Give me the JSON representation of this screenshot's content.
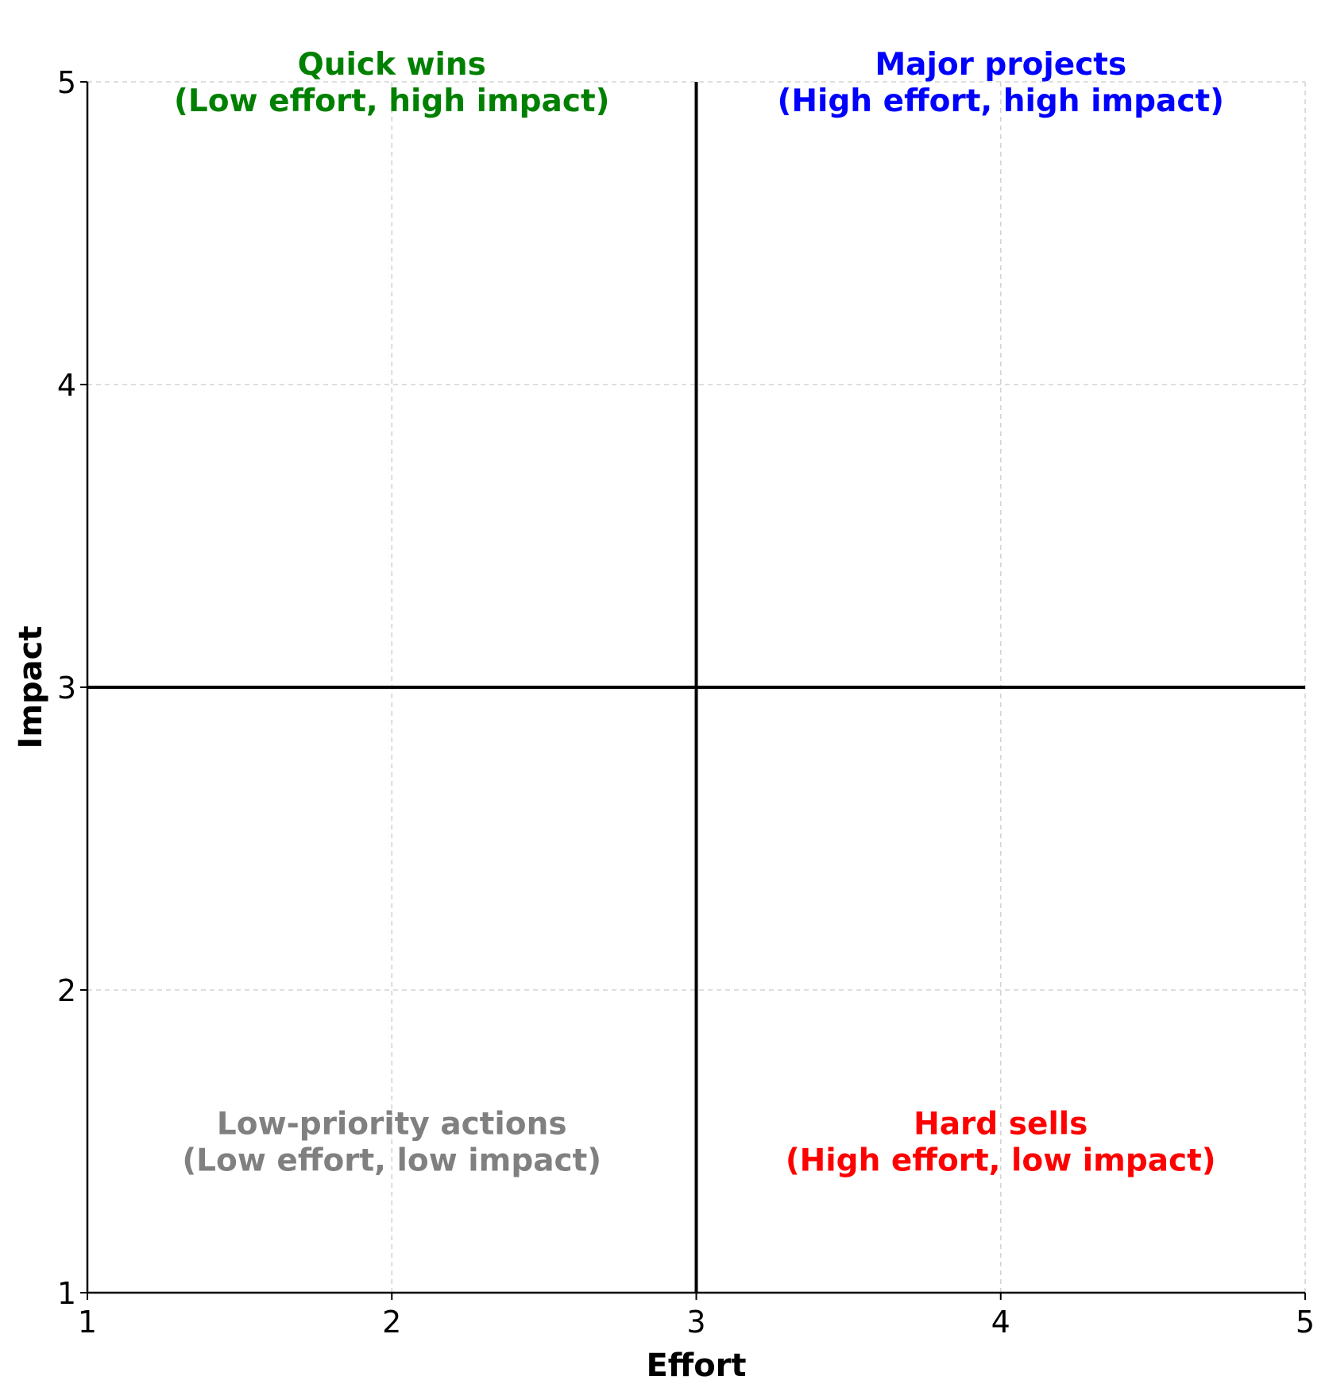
{
  "chart_data": {
    "type": "scatter",
    "xlabel": "Effort",
    "ylabel": "Impact",
    "xlim": [
      1,
      5
    ],
    "ylim": [
      1,
      5
    ],
    "xticks": [
      "1",
      "2",
      "3",
      "4",
      "5"
    ],
    "yticks": [
      "1",
      "2",
      "3",
      "4",
      "5"
    ],
    "grid": true,
    "divider_x": 3,
    "divider_y": 3,
    "quadrants": [
      {
        "id": "quick-wins",
        "x": 2,
        "y": 5,
        "lines": [
          "Quick wins",
          "(Low effort, high impact)"
        ],
        "color": "#008000"
      },
      {
        "id": "major-projects",
        "x": 4,
        "y": 5,
        "lines": [
          "Major projects",
          "(High effort, high impact)"
        ],
        "color": "#0000ff"
      },
      {
        "id": "low-priority",
        "x": 2,
        "y": 1.5,
        "lines": [
          "Low-priority actions",
          "(Low effort, low impact)"
        ],
        "color": "#808080"
      },
      {
        "id": "hard-sells",
        "x": 4,
        "y": 1.5,
        "lines": [
          "Hard sells",
          "(High effort, low impact)"
        ],
        "color": "#ff0000"
      }
    ]
  }
}
